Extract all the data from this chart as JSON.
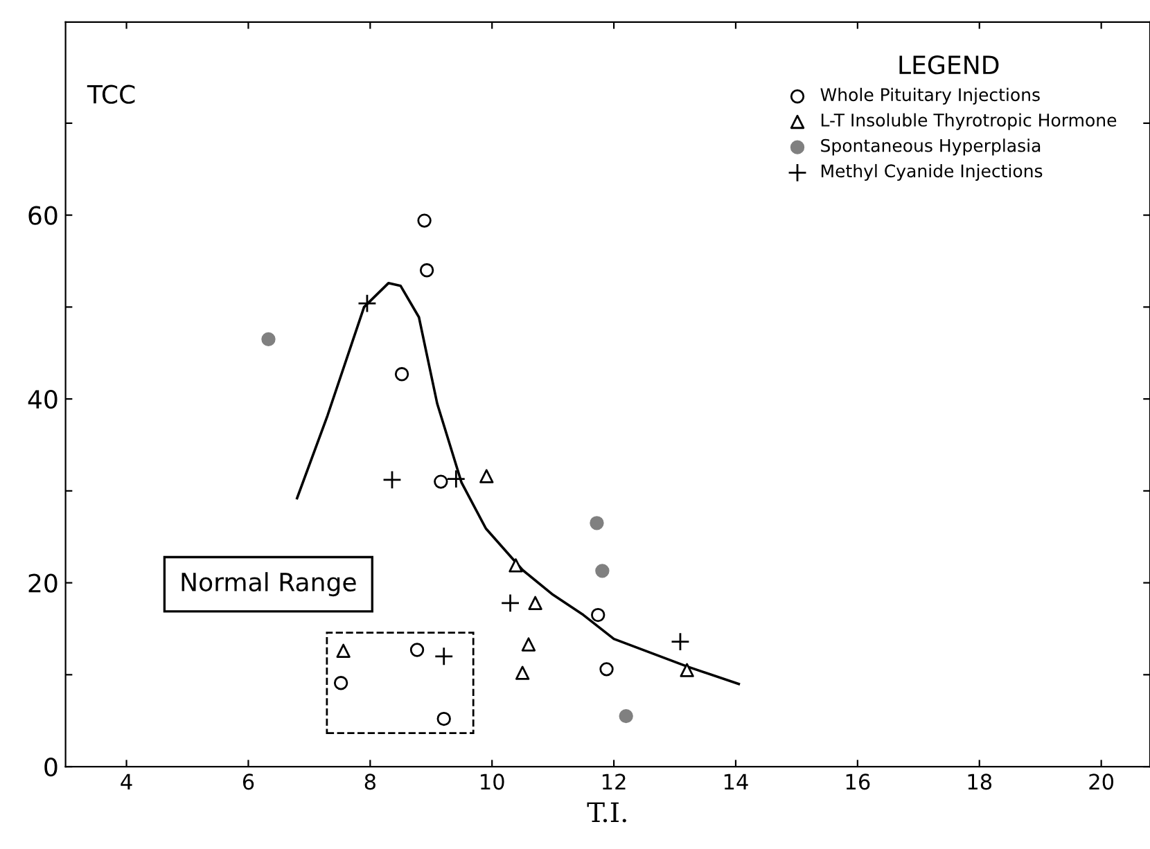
{
  "chart_data": {
    "type": "scatter",
    "xlabel": "T.I.",
    "ylabel": "TCC",
    "legend_title": "LEGEND",
    "legend": "top right",
    "grid": false,
    "xlim": [
      3,
      20.8
    ],
    "ylim": [
      0,
      81
    ],
    "xticks": [
      4,
      6,
      8,
      10,
      12,
      14,
      16,
      18,
      20
    ],
    "yticks": [
      0,
      {
        "value": 10,
        "label": null
      },
      20,
      {
        "value": 30,
        "label": null
      },
      40,
      {
        "value": 50,
        "label": null
      },
      60,
      {
        "value": 70,
        "label": null
      }
    ],
    "annotations": [
      "Normal Range"
    ],
    "series": [
      {
        "name": "Whole Pituitary Injections",
        "color": "#000000",
        "marker": "circle",
        "x": [
          8.89,
          8.93,
          8.52,
          9.16,
          8.77,
          7.52,
          9.21,
          11.74,
          11.88
        ],
        "values": [
          59.4,
          54,
          42.7,
          31,
          12.7,
          9.1,
          5.2,
          16.5,
          10.6
        ]
      },
      {
        "name": "L-T Insoluble Thyrotropic Hormone",
        "color": "#000000",
        "marker": "triangle",
        "x": [
          9.91,
          10.39,
          10.71,
          10.6,
          10.5,
          7.56,
          13.2
        ],
        "values": [
          31.6,
          21.9,
          17.8,
          13.3,
          10.2,
          12.6,
          10.5
        ]
      },
      {
        "name": "Spontaneous Hyperplasia",
        "color": "#808080",
        "marker": "circle",
        "x": [
          6.33,
          11.72,
          11.81,
          12.2
        ],
        "values": [
          46.5,
          26.5,
          21.3,
          5.5
        ]
      },
      {
        "name": "Methyl Cyanide Injections",
        "color": "#000000",
        "marker": "cross",
        "x": [
          7.95,
          8.36,
          9.41,
          10.3,
          9.21,
          13.09
        ],
        "values": [
          50.4,
          31.2,
          31.3,
          17.8,
          12,
          13.6
        ]
      },
      {
        "type": "line",
        "color": "#000000",
        "marker": "none",
        "line_style": "solid",
        "x": [
          6.8,
          7.3,
          7.9,
          8.3,
          8.5,
          8.8,
          9.1,
          9.5,
          9.9,
          10.5,
          11.0,
          11.5,
          12.0,
          13.2,
          14.05
        ],
        "values": [
          29.2,
          38.2,
          50,
          52.6,
          52.3,
          48.9,
          39.5,
          30.9,
          25.9,
          21.4,
          18.7,
          16.5,
          13.9,
          10.9,
          9.0
        ]
      }
    ]
  }
}
